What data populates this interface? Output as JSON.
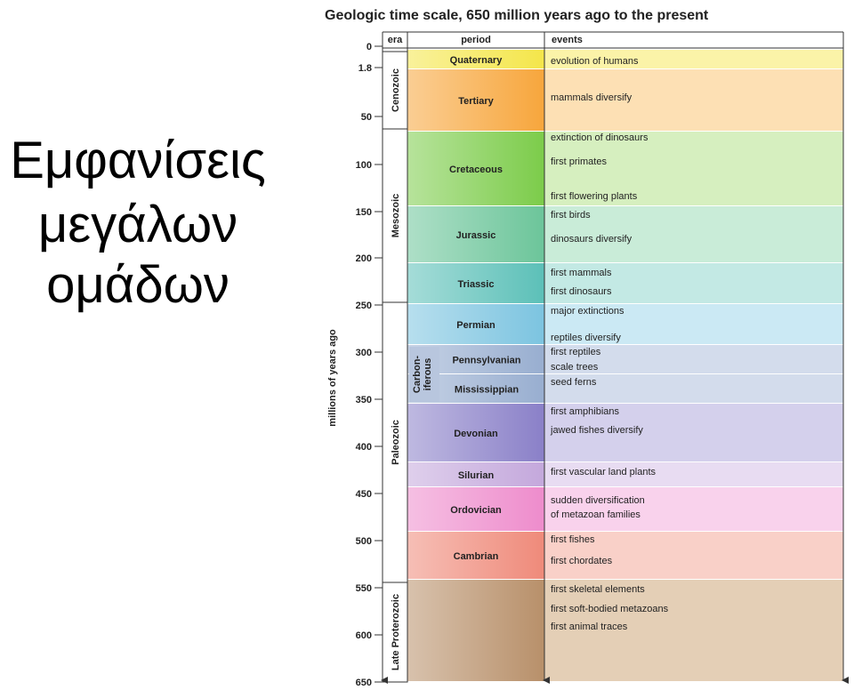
{
  "slide": {
    "title_lines": [
      "Εμφανίσεις",
      "μεγάλων",
      "ομάδων"
    ]
  },
  "figure": {
    "title": "Geologic time scale, 650 million years ago to the present",
    "axis_label": "millions of years ago",
    "ticks": [
      "0",
      "1.8",
      "50",
      "100",
      "150",
      "200",
      "250",
      "300",
      "350",
      "400",
      "450",
      "500",
      "550",
      "600",
      "650"
    ],
    "headers": [
      "era",
      "period",
      "events"
    ],
    "eras": [
      "Cenozoic",
      "Mesozoic",
      "Paleozoic",
      "Late Proterozoic"
    ],
    "periods": [
      "Quaternary",
      "Tertiary",
      "Cretaceous",
      "Jurassic",
      "Triassic",
      "Permian",
      "Pennsylvanian",
      "Mississippian",
      "Devonian",
      "Silurian",
      "Ordovician",
      "Cambrian"
    ],
    "carboniferous": [
      "Carbon-",
      "iferous"
    ],
    "events": [
      "evolution of humans",
      "mammals diversify",
      "extinction of dinosaurs",
      "first primates",
      "first flowering plants",
      "first birds",
      "dinosaurs diversify",
      "first mammals",
      "first dinosaurs",
      "major extinctions",
      "reptiles diversify",
      "first reptiles",
      "scale trees",
      "seed ferns",
      "first amphibians",
      "jawed fishes diversify",
      "first vascular land plants",
      "sudden diversification",
      "of metazoan families",
      "first fishes",
      "first chordates",
      "first skeletal elements",
      "first soft-bodied metazoans",
      "first animal traces"
    ]
  }
}
